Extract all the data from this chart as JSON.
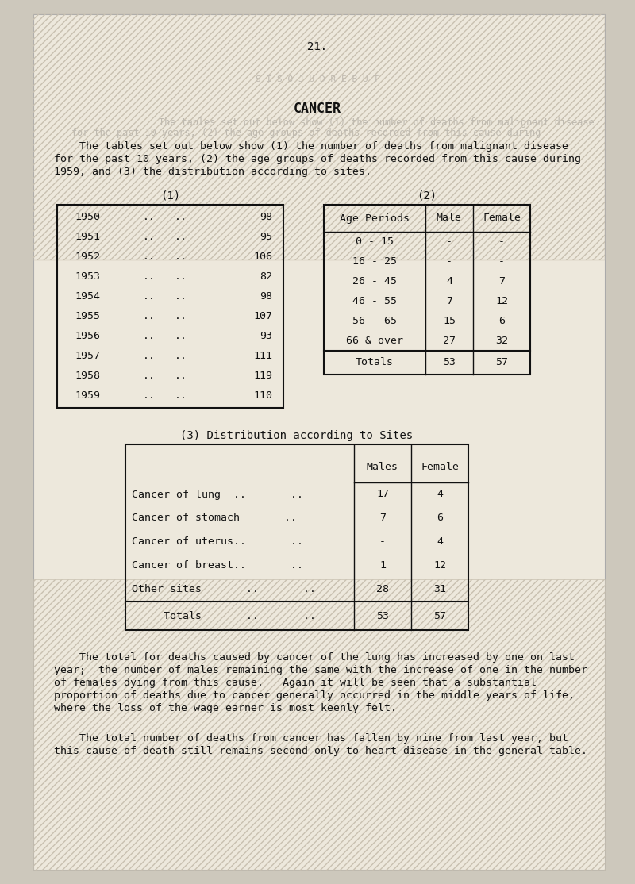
{
  "page_number": "21.",
  "title": "CANCER",
  "intro_text_lines": [
    "    The tables set out below show (1) the number of deaths from malignant disease",
    "for the past 10 years, (2) the age groups of deaths recorded from this cause during",
    "1959, and (3) the distribution according to sites."
  ],
  "table1_title": "(1)",
  "table1_years": [
    "1950",
    "1951",
    "1952",
    "1953",
    "1954",
    "1955",
    "1956",
    "1957",
    "1958",
    "1959"
  ],
  "table1_values": [
    "98",
    "95",
    "106",
    "82",
    "98",
    "107",
    "93",
    "111",
    "119",
    "110"
  ],
  "table2_title": "(2)",
  "table2_headers": [
    "Age Periods",
    "Male",
    "Female"
  ],
  "table2_rows": [
    [
      "0 - 15",
      "-",
      "-"
    ],
    [
      "16 - 25",
      "-",
      "-"
    ],
    [
      "26 - 45",
      "4",
      "7"
    ],
    [
      "46 - 55",
      "7",
      "12"
    ],
    [
      "56 - 65",
      "15",
      "6"
    ],
    [
      "66 & over",
      "27",
      "32"
    ]
  ],
  "table2_totals": [
    "Totals",
    "53",
    "57"
  ],
  "table3_title": "(3) Distribution according to Sites",
  "table3_rows": [
    [
      "Cancer of lung  ..       ..",
      "17",
      "4"
    ],
    [
      "Cancer of stomach       ..",
      "7",
      "6"
    ],
    [
      "Cancer of uterus..       ..",
      "-",
      "4"
    ],
    [
      "Cancer of breast..       ..",
      "1",
      "12"
    ],
    [
      "Other sites       ..       ..",
      "28",
      "31"
    ]
  ],
  "table3_totals_label": "Totals       ..       ..",
  "table3_totals": [
    "53",
    "57"
  ],
  "para1_lines": [
    "    The total for deaths caused by cancer of the lung has increased by one on last",
    "year;  the number of males remaining the same with the increase of one in the number",
    "of females dying from this cause.   Again it will be seen that a substantial",
    "proportion of deaths due to cancer generally occurred in the middle years of life,",
    "where the loss of the wage earner is most keenly felt."
  ],
  "para2_lines": [
    "    The total number of deaths from cancer has fallen by nine from last year, but",
    "this cause of death still remains second only to heart disease in the general table."
  ],
  "bg_color": "#cdc8bc",
  "paper_color": "#ede8dc",
  "text_color": "#111111",
  "watermark_color": "#c8c0b0",
  "font_size": 9.5,
  "title_font_size": 12
}
